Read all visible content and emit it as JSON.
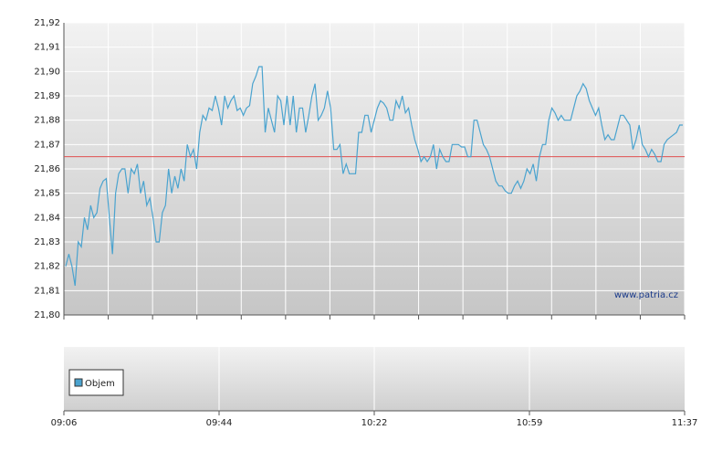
{
  "chart_data": {
    "type": "line",
    "series": [
      {
        "name": "Objem",
        "color": "#4aa3cf",
        "values": [
          21.82,
          21.825,
          21.82,
          21.812,
          21.83,
          21.828,
          21.84,
          21.835,
          21.845,
          21.84,
          21.842,
          21.852,
          21.855,
          21.856,
          21.84,
          21.825,
          21.85,
          21.858,
          21.86,
          21.86,
          21.85,
          21.86,
          21.858,
          21.862,
          21.85,
          21.855,
          21.845,
          21.848,
          21.84,
          21.83,
          21.83,
          21.842,
          21.845,
          21.86,
          21.85,
          21.857,
          21.852,
          21.86,
          21.855,
          21.87,
          21.865,
          21.868,
          21.86,
          21.875,
          21.882,
          21.88,
          21.885,
          21.884,
          21.89,
          21.885,
          21.878,
          21.89,
          21.885,
          21.888,
          21.89,
          21.884,
          21.885,
          21.882,
          21.885,
          21.886,
          21.895,
          21.898,
          21.902,
          21.902,
          21.875,
          21.885,
          21.88,
          21.875,
          21.89,
          21.888,
          21.878,
          21.89,
          21.878,
          21.89,
          21.875,
          21.885,
          21.885,
          21.875,
          21.882,
          21.89,
          21.895,
          21.88,
          21.882,
          21.885,
          21.892,
          21.885,
          21.868,
          21.868,
          21.87,
          21.858,
          21.862,
          21.858,
          21.858,
          21.858,
          21.875,
          21.875,
          21.882,
          21.882,
          21.875,
          21.88,
          21.885,
          21.888,
          21.887,
          21.885,
          21.88,
          21.88,
          21.888,
          21.885,
          21.89,
          21.883,
          21.885,
          21.878,
          21.872,
          21.868,
          21.863,
          21.865,
          21.863,
          21.865,
          21.87,
          21.86,
          21.868,
          21.865,
          21.863,
          21.863,
          21.87,
          21.87,
          21.87,
          21.869,
          21.869,
          21.865,
          21.865,
          21.88,
          21.88,
          21.875,
          21.87,
          21.868,
          21.865,
          21.86,
          21.855,
          21.853,
          21.853,
          21.851,
          21.85,
          21.85,
          21.853,
          21.855,
          21.852,
          21.855,
          21.86,
          21.858,
          21.862,
          21.855,
          21.865,
          21.87,
          21.87,
          21.88,
          21.885,
          21.883,
          21.88,
          21.882,
          21.88,
          21.88,
          21.88,
          21.885,
          21.89,
          21.892,
          21.895,
          21.893,
          21.888,
          21.885,
          21.882,
          21.885,
          21.878,
          21.872,
          21.874,
          21.872,
          21.872,
          21.877,
          21.882,
          21.882,
          21.88,
          21.878,
          21.868,
          21.872,
          21.878,
          21.87,
          21.868,
          21.865,
          21.868,
          21.866,
          21.863,
          21.863,
          21.87,
          21.872,
          21.873,
          21.874,
          21.875,
          21.878,
          21.878
        ]
      }
    ],
    "reference_line": 21.865,
    "reference_color": "#e05050",
    "ylim": [
      21.8,
      21.92
    ],
    "yticks": [
      {
        "value": 21.8,
        "label": "21,80"
      },
      {
        "value": 21.81,
        "label": "21,81"
      },
      {
        "value": 21.82,
        "label": "21,82"
      },
      {
        "value": 21.83,
        "label": "21,83"
      },
      {
        "value": 21.84,
        "label": "21,84"
      },
      {
        "value": 21.85,
        "label": "21,85"
      },
      {
        "value": 21.86,
        "label": "21,86"
      },
      {
        "value": 21.87,
        "label": "21,87"
      },
      {
        "value": 21.88,
        "label": "21,88"
      },
      {
        "value": 21.89,
        "label": "21,89"
      },
      {
        "value": 21.9,
        "label": "21,90"
      },
      {
        "value": 21.91,
        "label": "21,91"
      },
      {
        "value": 21.92,
        "label": "21,92"
      }
    ],
    "x_labels": [
      "09:06",
      "09:44",
      "10:22",
      "10:59",
      "11:37"
    ],
    "annotation": "www.patria.cz",
    "grid": true
  }
}
